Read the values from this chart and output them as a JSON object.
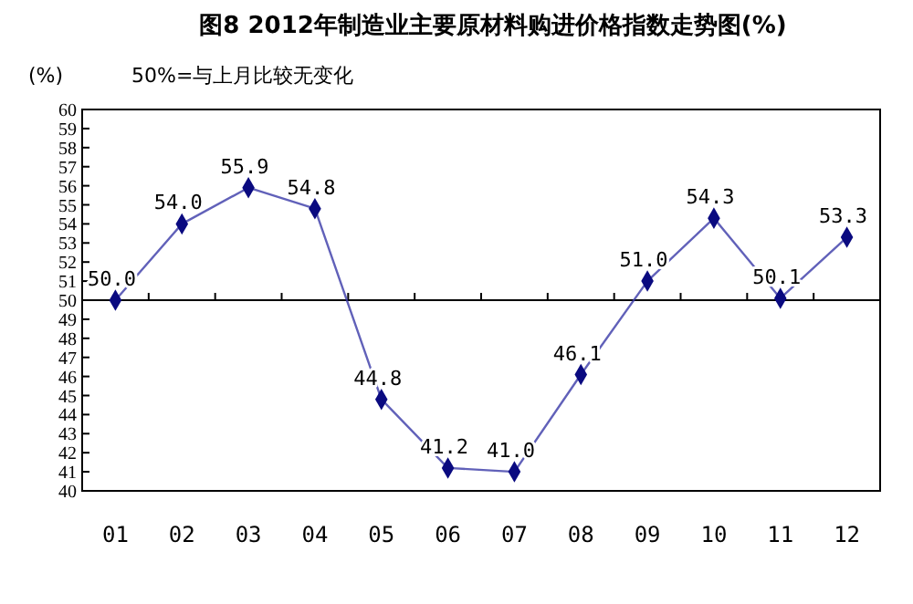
{
  "chart_data": {
    "type": "line",
    "title": "图8  2012年制造业主要原材料购进价格指数走势图(%)",
    "ylabel": "(%)",
    "annotations": [
      "50%=与上月比较无变化"
    ],
    "categories": [
      "01",
      "02",
      "03",
      "04",
      "05",
      "06",
      "07",
      "08",
      "09",
      "10",
      "11",
      "12"
    ],
    "series": [
      {
        "color": "#3a3aa8",
        "values": [
          50.0,
          54.0,
          55.9,
          54.8,
          44.8,
          41.2,
          41.0,
          46.1,
          51.0,
          54.3,
          50.1,
          53.3
        ],
        "value_labels": [
          "50.0",
          "54.0",
          "55.9",
          "54.8",
          "44.8",
          "41.2",
          "41.0",
          "46.1",
          "51.0",
          "54.3",
          "50.1",
          "53.3"
        ]
      }
    ],
    "ylim": [
      40,
      60
    ],
    "yticks": [
      40,
      41,
      42,
      43,
      44,
      45,
      46,
      47,
      48,
      49,
      50,
      51,
      52,
      53,
      54,
      55,
      56,
      57,
      58,
      59,
      60
    ],
    "ref_lines": [
      {
        "axis": "y",
        "value": 50,
        "color": "#000000"
      }
    ],
    "marker": "diamond",
    "line_style": "solid",
    "grid": false
  }
}
